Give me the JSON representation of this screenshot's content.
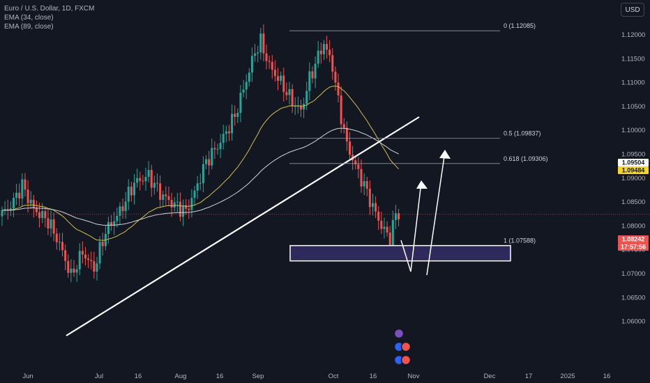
{
  "legend": {
    "title": "Euro / U.S. Dollar, 1D, FXCM",
    "ema1": "EMA (34, close)",
    "ema2": "EMA (89, close)"
  },
  "currency_button": "USD",
  "colors": {
    "up": "#26a69a",
    "down": "#ef5350",
    "ema34": "#d4c04a",
    "ema89": "#d1d4dc",
    "zone": "#2e2a5c"
  },
  "chart_data": {
    "type": "candlestick",
    "y_ticks": [
      "1.12000",
      "1.11500",
      "1.11000",
      "1.10500",
      "1.10000",
      "1.09500",
      "1.09000",
      "1.08500",
      "1.08000",
      "1.07500",
      "1.07000",
      "1.06500",
      "1.06000"
    ],
    "y_tick_values": [
      1.12,
      1.115,
      1.11,
      1.105,
      1.1,
      1.095,
      1.09,
      1.085,
      1.08,
      1.075,
      1.07,
      1.065,
      1.06
    ],
    "x_ticks": [
      "Jun",
      "Jul",
      "16",
      "Aug",
      "16",
      "Sep",
      "Oct",
      "16",
      "Nov",
      "Dec",
      "17",
      "2025",
      "16"
    ],
    "price_tags": [
      {
        "value": "1.09504",
        "bg": "#ffffff",
        "fg": "#131722"
      },
      {
        "value": "1.09484",
        "bg": "#f5d52a",
        "fg": "#131722"
      },
      {
        "value": "1.08242",
        "bg": "#ef5350",
        "fg": "#ffffff"
      },
      {
        "value": "17:57:56",
        "bg": "#ef5350",
        "fg": "#ffffff"
      }
    ],
    "fib_levels": [
      {
        "label": "0 (1.12085)",
        "price": 1.12085
      },
      {
        "label": "0.5 (1.09837)",
        "price": 1.09837
      },
      {
        "label": "0.618 (1.09306)",
        "price": 1.09306
      },
      {
        "label": "1 (1.07588)",
        "price": 1.07588
      }
    ]
  }
}
